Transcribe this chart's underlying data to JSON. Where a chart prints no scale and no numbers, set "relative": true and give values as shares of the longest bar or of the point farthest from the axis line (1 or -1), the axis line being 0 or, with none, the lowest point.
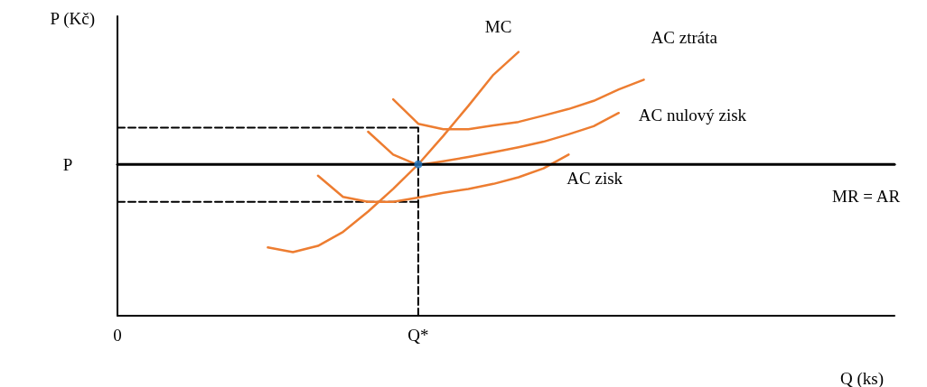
{
  "chart_data": {
    "type": "line",
    "relative": true,
    "xlabel": "Q (ks)",
    "ylabel": "P (Kč)",
    "grid": false,
    "legend": false,
    "marker": "none",
    "annotations": [
      {
        "text": "P",
        "x": "0",
        "y": 0.574
      }
    ],
    "categories": [
      "0",
      null,
      null,
      null,
      null,
      null,
      null,
      null,
      null,
      null,
      null,
      null,
      "Q*",
      null,
      null,
      null,
      null,
      null,
      null,
      null,
      null,
      null,
      null,
      null,
      null,
      null,
      null,
      null,
      null,
      null,
      null,
      null
    ],
    "series": [
      {
        "name": "MC",
        "color": "#ed7d31",
        "values": [
          null,
          null,
          null,
          null,
          null,
          null,
          0.259,
          0.241,
          0.265,
          0.318,
          0.395,
          0.481,
          0.574,
          0.682,
          0.796,
          0.914,
          1,
          null,
          null,
          null,
          null,
          null,
          null,
          null,
          null,
          null,
          null,
          null,
          null,
          null,
          null,
          null
        ]
      },
      {
        "name": "AC ztráta",
        "color": "#ed7d31",
        "values": [
          null,
          null,
          null,
          null,
          null,
          null,
          null,
          null,
          null,
          null,
          null,
          0.821,
          0.728,
          0.707,
          0.707,
          0.722,
          0.735,
          0.759,
          0.784,
          0.815,
          0.858,
          0.895,
          null,
          null,
          null,
          null,
          null,
          null,
          null,
          null,
          null,
          null
        ]
      },
      {
        "name": "AC nulový zisk",
        "color": "#ed7d31",
        "values": [
          null,
          null,
          null,
          null,
          null,
          null,
          null,
          null,
          null,
          null,
          0.698,
          0.611,
          0.571,
          0.586,
          0.602,
          0.62,
          0.639,
          0.66,
          0.688,
          0.719,
          0.769,
          null,
          null,
          null,
          null,
          null,
          null,
          null,
          null,
          null,
          null,
          null
        ]
      },
      {
        "name": "AC zisk",
        "color": "#ed7d31",
        "values": [
          null,
          null,
          null,
          null,
          null,
          null,
          null,
          null,
          0.531,
          0.451,
          0.432,
          0.432,
          0.448,
          0.466,
          0.481,
          0.5,
          0.525,
          0.559,
          0.611,
          null,
          null,
          null,
          null,
          null,
          null,
          null,
          null,
          null,
          null,
          null,
          null,
          null
        ]
      },
      {
        "name": "MR = AR",
        "color": "#000000",
        "values": [
          0.574,
          0.574,
          0.574,
          0.574,
          0.574,
          0.574,
          0.574,
          0.574,
          0.574,
          0.574,
          0.574,
          0.574,
          0.574,
          0.574,
          0.574,
          0.574,
          0.574,
          0.574,
          0.574,
          0.574,
          0.574,
          0.574,
          0.574,
          0.574,
          0.574,
          0.574,
          0.574,
          0.574,
          0.574,
          0.574,
          0.574,
          0.574
        ]
      },
      {
        "color": "#000000",
        "line_style": "dashed",
        "x": [
          "Q*",
          "Q*"
        ],
        "values": [
          0,
          0.713
        ]
      },
      {
        "color": "#000000",
        "line_style": "dashed",
        "x": [
          "0",
          "Q*"
        ],
        "values": [
          0.713,
          0.713
        ]
      },
      {
        "color": "#000000",
        "line_style": "dashed",
        "x": [
          "0",
          "Q*"
        ],
        "values": [
          0.432,
          0.432
        ]
      },
      {
        "type": "scatter",
        "marker": "circle",
        "color": "#1f77c4",
        "x": [
          "Q*"
        ],
        "values": [
          0.574
        ]
      }
    ]
  }
}
